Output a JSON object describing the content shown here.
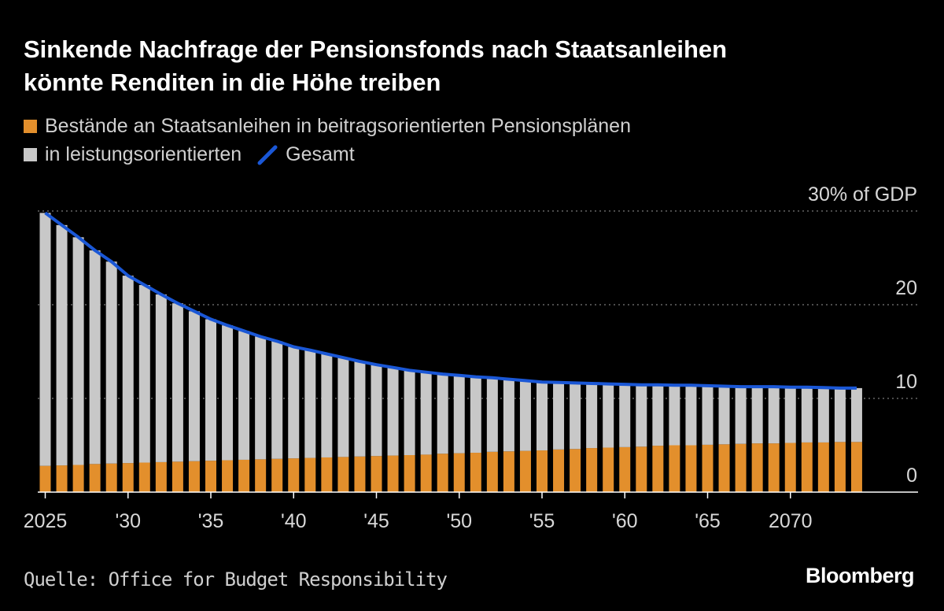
{
  "title_line1": "Sinkende Nachfrage der Pensionsfonds nach Staatsanleihen",
  "title_line2": "könnte Renditen in die Höhe treiben",
  "legend": {
    "dc": "Bestände an Staatsanleihen in beitragsorientierten Pensionsplänen",
    "db": "in leistungsorientierten",
    "total": "Gesamt"
  },
  "source": "Quelle: Office for Budget Responsibility",
  "brand": "Bloomberg",
  "colors": {
    "dc": "#e38f2c",
    "db": "#c8c8c8",
    "total": "#1a57d6",
    "background": "#000000"
  },
  "chart_data": {
    "type": "bar",
    "stacked": true,
    "x": [
      2025,
      2026,
      2027,
      2028,
      2029,
      2030,
      2031,
      2032,
      2033,
      2034,
      2035,
      2036,
      2037,
      2038,
      2039,
      2040,
      2041,
      2042,
      2043,
      2044,
      2045,
      2046,
      2047,
      2048,
      2049,
      2050,
      2051,
      2052,
      2053,
      2054,
      2055,
      2056,
      2057,
      2058,
      2059,
      2060,
      2061,
      2062,
      2063,
      2064,
      2065,
      2066,
      2067,
      2068,
      2069,
      2070,
      2071,
      2072,
      2073,
      2074
    ],
    "x_tick_labels": [
      {
        "x": 2025,
        "label": "2025"
      },
      {
        "x": 2030,
        "label": "'30"
      },
      {
        "x": 2035,
        "label": "'35"
      },
      {
        "x": 2040,
        "label": "'40"
      },
      {
        "x": 2045,
        "label": "'45"
      },
      {
        "x": 2050,
        "label": "'50"
      },
      {
        "x": 2055,
        "label": "'55"
      },
      {
        "x": 2060,
        "label": "'60"
      },
      {
        "x": 2065,
        "label": "'65"
      },
      {
        "x": 2070,
        "label": "2070"
      }
    ],
    "y_ticks": [
      {
        "value": 0,
        "label": "0"
      },
      {
        "value": 10,
        "label": "10"
      },
      {
        "value": 20,
        "label": "20"
      },
      {
        "value": 30,
        "label": "30% of GDP"
      }
    ],
    "ylim": [
      0,
      30
    ],
    "grid": "horizontal dotted",
    "series": [
      {
        "name": "Bestände an Staatsanleihen in beitragsorientierten Pensionsplänen",
        "type": "bar",
        "values": [
          2.8,
          2.85,
          2.9,
          3.0,
          3.05,
          3.1,
          3.15,
          3.2,
          3.25,
          3.3,
          3.35,
          3.4,
          3.45,
          3.5,
          3.55,
          3.6,
          3.65,
          3.7,
          3.75,
          3.8,
          3.85,
          3.9,
          3.95,
          4.0,
          4.1,
          4.15,
          4.2,
          4.3,
          4.35,
          4.4,
          4.45,
          4.55,
          4.6,
          4.7,
          4.75,
          4.8,
          4.85,
          4.95,
          5.0,
          5.0,
          5.05,
          5.1,
          5.15,
          5.2,
          5.2,
          5.25,
          5.3,
          5.3,
          5.35,
          5.35
        ]
      },
      {
        "name": "in leistungsorientierten",
        "type": "bar",
        "values": [
          27.0,
          25.65,
          24.3,
          22.8,
          21.55,
          20.0,
          18.95,
          17.9,
          16.9,
          16.0,
          15.1,
          14.4,
          13.75,
          13.1,
          12.55,
          11.9,
          11.5,
          11.05,
          10.6,
          10.15,
          9.75,
          9.4,
          9.05,
          8.8,
          8.5,
          8.3,
          8.1,
          7.9,
          7.7,
          7.5,
          7.3,
          7.15,
          7.05,
          6.9,
          6.8,
          6.7,
          6.6,
          6.5,
          6.4,
          6.4,
          6.3,
          6.2,
          6.1,
          6.05,
          6.05,
          5.95,
          5.9,
          5.85,
          5.75,
          5.75
        ]
      },
      {
        "name": "Gesamt",
        "type": "line",
        "values": [
          29.8,
          28.5,
          27.2,
          25.8,
          24.6,
          23.1,
          22.1,
          21.1,
          20.15,
          19.3,
          18.45,
          17.8,
          17.2,
          16.6,
          16.1,
          15.5,
          15.15,
          14.75,
          14.35,
          13.95,
          13.6,
          13.3,
          13.0,
          12.8,
          12.6,
          12.45,
          12.3,
          12.2,
          12.05,
          11.9,
          11.75,
          11.7,
          11.65,
          11.6,
          11.55,
          11.5,
          11.45,
          11.45,
          11.4,
          11.4,
          11.35,
          11.3,
          11.25,
          11.25,
          11.25,
          11.2,
          11.2,
          11.15,
          11.1,
          11.1
        ]
      }
    ]
  }
}
